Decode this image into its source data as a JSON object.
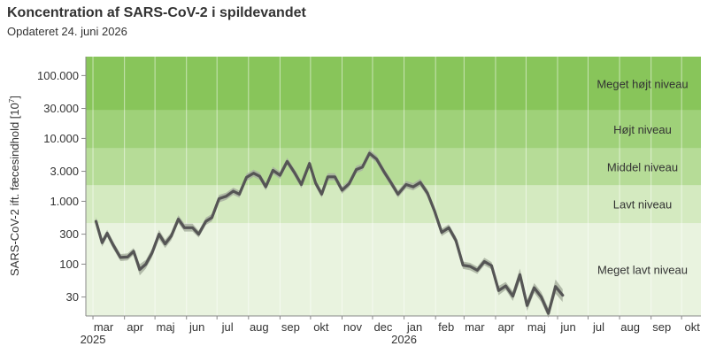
{
  "title": "Koncentration af SARS-CoV-2 i spildevandet",
  "subtitle": "Opdateret 24. juni 2026",
  "chart_data": {
    "type": "line",
    "title": "Koncentration af SARS-CoV-2 i spildevandet",
    "subtitle": "Opdateret 24. juni 2026",
    "ylabel": "SARS-CoV-2 ift. fæcesindhold [10",
    "ylabel_exponent": "7",
    "ylabel_close": "]",
    "yscale": "log",
    "ylim": [
      15,
      200000
    ],
    "xlim": [
      "2025-02-22",
      "2026-10-20"
    ],
    "y_ticks": [
      {
        "value": 30,
        "label": "30"
      },
      {
        "value": 100,
        "label": "100"
      },
      {
        "value": 300,
        "label": "300"
      },
      {
        "value": 1000,
        "label": "1.000"
      },
      {
        "value": 3000,
        "label": "3.000"
      },
      {
        "value": 10000,
        "label": "10.000"
      },
      {
        "value": 30000,
        "label": "30.000"
      },
      {
        "value": 100000,
        "label": "100.000"
      }
    ],
    "x_ticks": [
      {
        "date": "2025-03-01",
        "label": "mar",
        "year": "2025"
      },
      {
        "date": "2025-04-01",
        "label": "apr"
      },
      {
        "date": "2025-05-01",
        "label": "maj"
      },
      {
        "date": "2025-06-01",
        "label": "jun"
      },
      {
        "date": "2025-07-01",
        "label": "jul"
      },
      {
        "date": "2025-08-01",
        "label": "aug"
      },
      {
        "date": "2025-09-01",
        "label": "sep"
      },
      {
        "date": "2025-10-01",
        "label": "okt"
      },
      {
        "date": "2025-11-01",
        "label": "nov"
      },
      {
        "date": "2025-12-01",
        "label": "dec"
      },
      {
        "date": "2026-01-01",
        "label": "jan",
        "year": "2026"
      },
      {
        "date": "2026-02-01",
        "label": "feb"
      },
      {
        "date": "2026-03-01",
        "label": "mar"
      },
      {
        "date": "2026-04-01",
        "label": "apr"
      },
      {
        "date": "2026-05-01",
        "label": "maj"
      },
      {
        "date": "2026-06-01",
        "label": "jun"
      },
      {
        "date": "2026-07-01",
        "label": "jul"
      },
      {
        "date": "2026-08-01",
        "label": "aug"
      },
      {
        "date": "2026-09-01",
        "label": "sep"
      },
      {
        "date": "2026-10-01",
        "label": "okt"
      }
    ],
    "bands": [
      {
        "label": "Meget lavt niveau",
        "from": 15,
        "to": 450,
        "color": "#e9f3df"
      },
      {
        "label": "Lavt niveau",
        "from": 450,
        "to": 1800,
        "color": "#d4eac0"
      },
      {
        "label": "Middel niveau",
        "from": 1800,
        "to": 7000,
        "color": "#b6dc97"
      },
      {
        "label": "Højt niveau",
        "from": 7000,
        "to": 28000,
        "color": "#9fd179"
      },
      {
        "label": "Meget højt niveau",
        "from": 28000,
        "to": 200000,
        "color": "#88c55a"
      }
    ],
    "series": [
      {
        "line_color": "#555555",
        "band_color": "#a8b0a0",
        "points": [
          {
            "x": "2025-03-04",
            "y": 480,
            "lo": 400,
            "hi": 560
          },
          {
            "x": "2025-03-10",
            "y": 220,
            "lo": 190,
            "hi": 250
          },
          {
            "x": "2025-03-15",
            "y": 310,
            "lo": 270,
            "hi": 350
          },
          {
            "x": "2025-03-21",
            "y": 200,
            "lo": 175,
            "hi": 230
          },
          {
            "x": "2025-03-28",
            "y": 128,
            "lo": 112,
            "hi": 145
          },
          {
            "x": "2025-04-04",
            "y": 130,
            "lo": 115,
            "hi": 148
          },
          {
            "x": "2025-04-10",
            "y": 160,
            "lo": 140,
            "hi": 180
          },
          {
            "x": "2025-04-16",
            "y": 82,
            "lo": 66,
            "hi": 100
          },
          {
            "x": "2025-04-22",
            "y": 100,
            "lo": 85,
            "hi": 117
          },
          {
            "x": "2025-04-28",
            "y": 150,
            "lo": 128,
            "hi": 175
          },
          {
            "x": "2025-05-05",
            "y": 300,
            "lo": 250,
            "hi": 350
          },
          {
            "x": "2025-05-11",
            "y": 210,
            "lo": 180,
            "hi": 245
          },
          {
            "x": "2025-05-17",
            "y": 280,
            "lo": 240,
            "hi": 320
          },
          {
            "x": "2025-05-24",
            "y": 520,
            "lo": 450,
            "hi": 600
          },
          {
            "x": "2025-05-30",
            "y": 380,
            "lo": 330,
            "hi": 440
          },
          {
            "x": "2025-06-07",
            "y": 380,
            "lo": 330,
            "hi": 440
          },
          {
            "x": "2025-06-13",
            "y": 300,
            "lo": 265,
            "hi": 340
          },
          {
            "x": "2025-06-20",
            "y": 480,
            "lo": 420,
            "hi": 550
          },
          {
            "x": "2025-06-26",
            "y": 550,
            "lo": 480,
            "hi": 630
          },
          {
            "x": "2025-07-03",
            "y": 1100,
            "lo": 960,
            "hi": 1260
          },
          {
            "x": "2025-07-10",
            "y": 1200,
            "lo": 1050,
            "hi": 1370
          },
          {
            "x": "2025-07-17",
            "y": 1450,
            "lo": 1270,
            "hi": 1650
          },
          {
            "x": "2025-07-23",
            "y": 1300,
            "lo": 1140,
            "hi": 1480
          },
          {
            "x": "2025-07-30",
            "y": 2400,
            "lo": 2100,
            "hi": 2740
          },
          {
            "x": "2025-08-06",
            "y": 2800,
            "lo": 2450,
            "hi": 3200
          },
          {
            "x": "2025-08-12",
            "y": 2500,
            "lo": 2190,
            "hi": 2860
          },
          {
            "x": "2025-08-18",
            "y": 1700,
            "lo": 1490,
            "hi": 1940
          },
          {
            "x": "2025-08-25",
            "y": 3100,
            "lo": 2720,
            "hi": 3540
          },
          {
            "x": "2025-09-01",
            "y": 2600,
            "lo": 2280,
            "hi": 2970
          },
          {
            "x": "2025-09-08",
            "y": 4300,
            "lo": 3770,
            "hi": 4910
          },
          {
            "x": "2025-09-15",
            "y": 2900,
            "lo": 2540,
            "hi": 3310
          },
          {
            "x": "2025-09-22",
            "y": 1850,
            "lo": 1620,
            "hi": 2110
          },
          {
            "x": "2025-09-30",
            "y": 4000,
            "lo": 3510,
            "hi": 4570
          },
          {
            "x": "2025-10-06",
            "y": 1950,
            "lo": 1710,
            "hi": 2230
          },
          {
            "x": "2025-10-12",
            "y": 1300,
            "lo": 1140,
            "hi": 1480
          },
          {
            "x": "2025-10-18",
            "y": 2450,
            "lo": 2150,
            "hi": 2800
          },
          {
            "x": "2025-10-25",
            "y": 2450,
            "lo": 2150,
            "hi": 2800
          },
          {
            "x": "2025-11-01",
            "y": 1500,
            "lo": 1320,
            "hi": 1710
          },
          {
            "x": "2025-11-08",
            "y": 1900,
            "lo": 1670,
            "hi": 2170
          },
          {
            "x": "2025-11-15",
            "y": 3200,
            "lo": 2810,
            "hi": 3650
          },
          {
            "x": "2025-11-21",
            "y": 3500,
            "lo": 3070,
            "hi": 4000
          },
          {
            "x": "2025-11-28",
            "y": 5800,
            "lo": 5090,
            "hi": 6620
          },
          {
            "x": "2025-12-05",
            "y": 4700,
            "lo": 4120,
            "hi": 5370
          },
          {
            "x": "2025-12-12",
            "y": 3000,
            "lo": 2630,
            "hi": 3420
          },
          {
            "x": "2025-12-19",
            "y": 2000,
            "lo": 1750,
            "hi": 2280
          },
          {
            "x": "2025-12-26",
            "y": 1300,
            "lo": 1140,
            "hi": 1480
          },
          {
            "x": "2026-01-03",
            "y": 1850,
            "lo": 1620,
            "hi": 2110
          },
          {
            "x": "2026-01-10",
            "y": 1700,
            "lo": 1490,
            "hi": 1940
          },
          {
            "x": "2026-01-17",
            "y": 2000,
            "lo": 1750,
            "hi": 2280
          },
          {
            "x": "2026-01-24",
            "y": 1350,
            "lo": 1180,
            "hi": 1540
          },
          {
            "x": "2026-01-31",
            "y": 700,
            "lo": 610,
            "hi": 800
          },
          {
            "x": "2026-02-07",
            "y": 320,
            "lo": 280,
            "hi": 365
          },
          {
            "x": "2026-02-14",
            "y": 380,
            "lo": 330,
            "hi": 430
          },
          {
            "x": "2026-02-21",
            "y": 240,
            "lo": 210,
            "hi": 275
          },
          {
            "x": "2026-02-28",
            "y": 96,
            "lo": 84,
            "hi": 110
          },
          {
            "x": "2026-03-07",
            "y": 92,
            "lo": 80,
            "hi": 105
          },
          {
            "x": "2026-03-14",
            "y": 80,
            "lo": 70,
            "hi": 91
          },
          {
            "x": "2026-03-21",
            "y": 110,
            "lo": 96,
            "hi": 126
          },
          {
            "x": "2026-03-28",
            "y": 95,
            "lo": 83,
            "hi": 108
          },
          {
            "x": "2026-04-04",
            "y": 38,
            "lo": 32,
            "hi": 45
          },
          {
            "x": "2026-04-11",
            "y": 45,
            "lo": 39,
            "hi": 52
          },
          {
            "x": "2026-04-18",
            "y": 31,
            "lo": 26,
            "hi": 37
          },
          {
            "x": "2026-04-25",
            "y": 68,
            "lo": 54,
            "hi": 85
          },
          {
            "x": "2026-05-02",
            "y": 22,
            "lo": 18,
            "hi": 27
          },
          {
            "x": "2026-05-09",
            "y": 42,
            "lo": 35,
            "hi": 50
          },
          {
            "x": "2026-05-16",
            "y": 30,
            "lo": 25,
            "hi": 36
          },
          {
            "x": "2026-05-23",
            "y": 16.5,
            "lo": 14,
            "hi": 20
          },
          {
            "x": "2026-05-30",
            "y": 44,
            "lo": 34,
            "hi": 57
          },
          {
            "x": "2026-06-06",
            "y": 32,
            "lo": 25,
            "hi": 40
          }
        ]
      }
    ]
  }
}
